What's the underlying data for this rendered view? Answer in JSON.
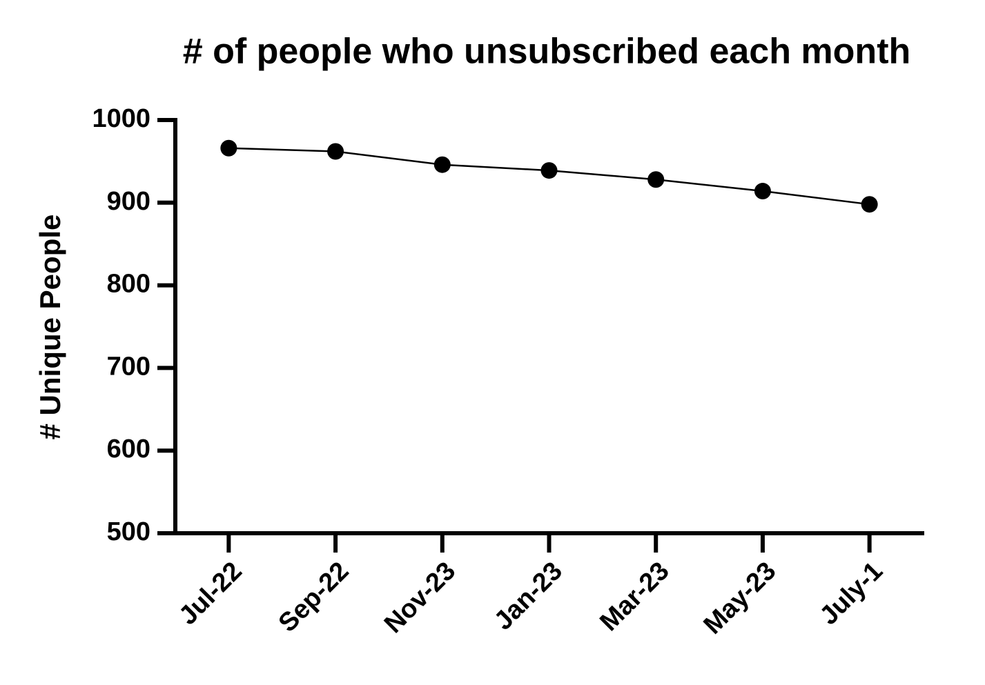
{
  "chart_data": {
    "type": "line",
    "title": "# of people who unsubscribed each month",
    "y_label": "# Unique People",
    "categories": [
      "Jul-22",
      "Sep-22",
      "Nov-23",
      "Jan-23",
      "Mar-23",
      "May-23",
      "July-1"
    ],
    "values": [
      966,
      962,
      946,
      939,
      928,
      914,
      898
    ],
    "color": "#000000",
    "ylim": [
      500,
      1000
    ],
    "yticks": [
      500,
      600,
      700,
      800,
      900,
      1000
    ],
    "grid": false
  }
}
